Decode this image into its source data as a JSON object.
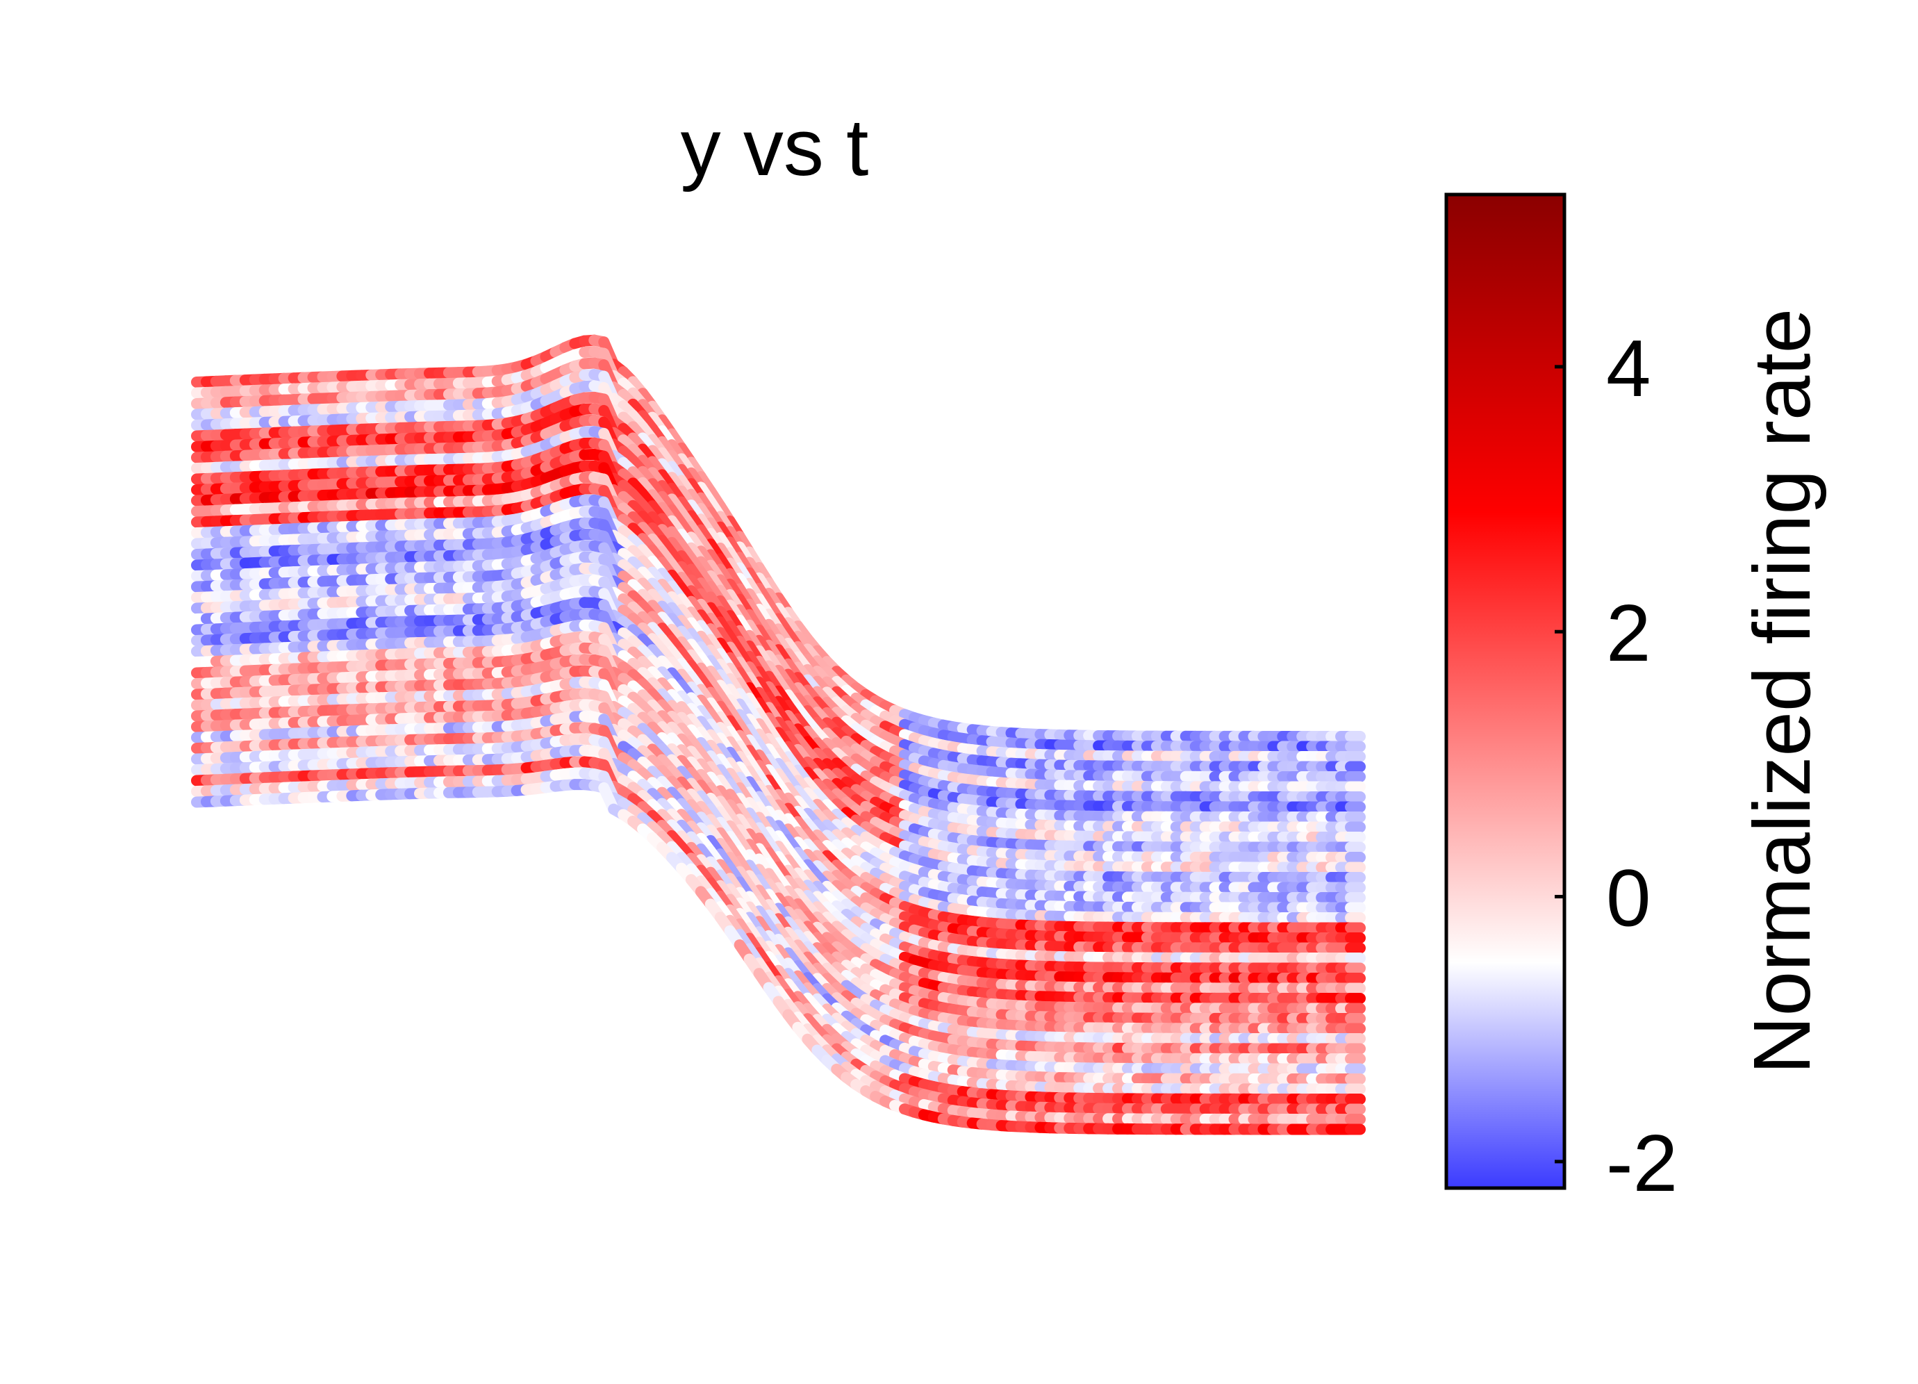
{
  "chart_data": {
    "type": "line",
    "title": "y vs t",
    "xlabel": "",
    "ylabel": "",
    "axes_visible": false,
    "description_of_encoding": "",
    "trajectory_count": 40,
    "trajectory_shape": {
      "left_plateau_top": 0.0,
      "peak_near_fraction_of_t": 0.36,
      "right_plateau_drop": 1.0
    },
    "colorbar": {
      "label": "Normalized firing rate",
      "min": -2.2,
      "max": 5.3,
      "ticks": [
        -2,
        0,
        2,
        4
      ],
      "tick_labels": [
        "-2",
        "0",
        "2",
        "4"
      ],
      "colormap": [
        "#3b3bff",
        "#ffffff",
        "#ff0000",
        "#8b0000"
      ]
    }
  }
}
